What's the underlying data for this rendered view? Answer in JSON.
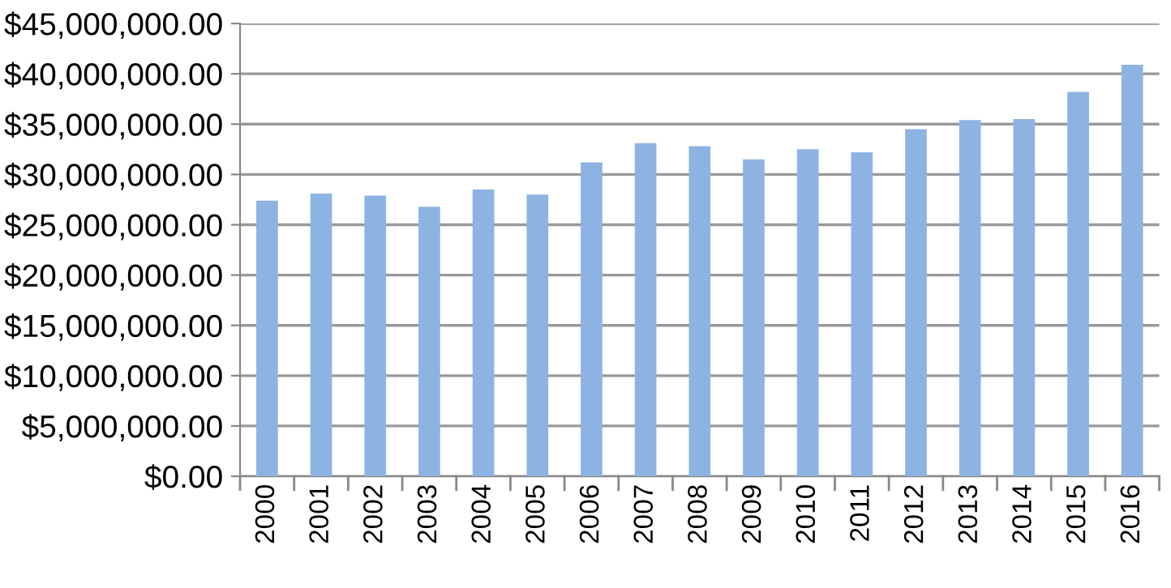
{
  "chart_data": {
    "type": "bar",
    "categories": [
      "2000",
      "2001",
      "2002",
      "2003",
      "2004",
      "2005",
      "2006",
      "2007",
      "2008",
      "2009",
      "2010",
      "2011",
      "2012",
      "2013",
      "2014",
      "2015",
      "2016"
    ],
    "values": [
      27400000,
      28100000,
      27900000,
      26800000,
      28500000,
      28000000,
      31200000,
      33100000,
      32800000,
      31500000,
      32500000,
      32200000,
      34500000,
      35400000,
      35500000,
      38200000,
      40900000
    ],
    "color": "#8db3e2",
    "ylim": [
      0,
      45000000
    ],
    "yticks": [
      {
        "value": 0,
        "label": "$0.00"
      },
      {
        "value": 5000000,
        "label": "$5,000,000.00"
      },
      {
        "value": 10000000,
        "label": "$10,000,000.00"
      },
      {
        "value": 15000000,
        "label": "$15,000,000.00"
      },
      {
        "value": 20000000,
        "label": "$20,000,000.00"
      },
      {
        "value": 25000000,
        "label": "$25,000,000.00"
      },
      {
        "value": 30000000,
        "label": "$30,000,000.00"
      },
      {
        "value": 35000000,
        "label": "$35,000,000.00"
      },
      {
        "value": 40000000,
        "label": "$40,000,000.00"
      },
      {
        "value": 45000000,
        "label": "$45,000,000.00"
      }
    ],
    "grid": "y"
  }
}
